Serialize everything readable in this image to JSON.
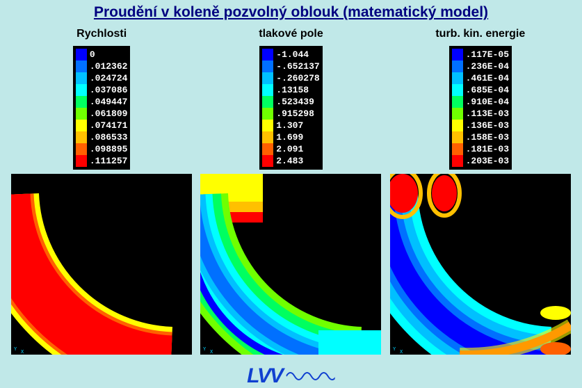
{
  "title": "Proudění v koleně pozvolný oblouk (matematický model)",
  "logo_text": "LVV",
  "logo_color": "#1040d0",
  "background_color": "#c0e8e8",
  "title_color": "#000080",
  "title_fontsize": 21,
  "header_fontsize": 16,
  "colormap_swatches": [
    "#0000ff",
    "#0070ff",
    "#00c0ff",
    "#00ffff",
    "#00ff60",
    "#70ff00",
    "#ffff00",
    "#ffc000",
    "#ff6000",
    "#ff0000"
  ],
  "panels": [
    {
      "header": "Rychlosti",
      "legend": [
        "0",
        ".012362",
        ".024724",
        ".037086",
        ".049447",
        ".061809",
        ".074171",
        ".086533",
        ".098895",
        ".111257"
      ],
      "sim": {
        "dominant": "red",
        "pattern": "solid_arc"
      }
    },
    {
      "header": "tlakové pole",
      "legend": [
        "-1.044",
        "-.652137",
        "-.260278",
        ".13158",
        ".523439",
        ".915298",
        "1.307",
        "1.699",
        "2.091",
        "2.483"
      ],
      "sim": {
        "dominant": "mixed",
        "pattern": "gradient_arc"
      }
    },
    {
      "header": "turb. kin. energie",
      "legend": [
        ".117E-05",
        ".236E-04",
        ".461E-04",
        ".685E-04",
        ".910E-04",
        ".113E-03",
        ".136E-03",
        ".158E-03",
        ".181E-03",
        ".203E-03"
      ],
      "sim": {
        "dominant": "blue",
        "pattern": "edge_hot"
      }
    }
  ]
}
